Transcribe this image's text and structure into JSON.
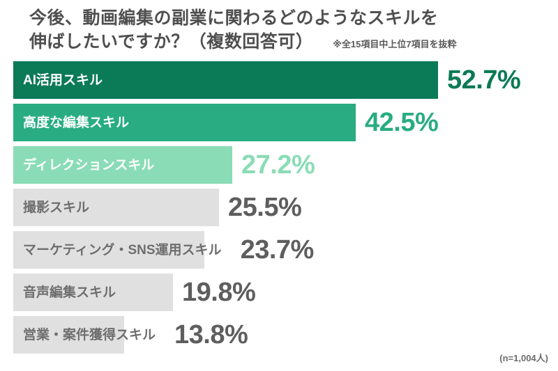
{
  "page": {
    "title_line1": "今後、動画編集の副業に関わるどのようなスキルを",
    "title_line2": "伸ばしたいですか？（複数回答可）",
    "note": "※全15項目中上位7項目を抜粋",
    "sample_note": "(n=1,004人)"
  },
  "colors": {
    "title_text": "#4f4f4f",
    "green_dark": "#0b7a56",
    "green_mid": "#29ac82",
    "green_light": "#8adcb6",
    "gray_bar": "#e0e0e0",
    "gray_label": "#6e6e6e",
    "gray_value": "#5e5e5e",
    "white": "#ffffff"
  },
  "chart_data": {
    "type": "bar",
    "orientation": "horizontal",
    "title": "今後、動画編集の副業に関わるどのようなスキルを伸ばしたいですか？（複数回答可）",
    "note": "※全15項目中上位7項目を抜粋",
    "sample_note": "(n=1,004人)",
    "unit": "%",
    "xlim": [
      0,
      60
    ],
    "grid": false,
    "legend": false,
    "categories": [
      "AI活用スキル",
      "高度な編集スキル",
      "ディレクションスキル",
      "撮影スキル",
      "マーケティング・SNS運用スキル",
      "音声編集スキル",
      "営業・案件獲得スキル"
    ],
    "values": [
      52.7,
      42.5,
      27.2,
      25.5,
      23.7,
      19.8,
      13.8
    ],
    "bars": [
      {
        "label": "AI活用スキル",
        "value": 52.7,
        "value_display": "52.7%",
        "bar_color": "#0b7a56",
        "label_color": "#ffffff",
        "value_color": "#0b7a56"
      },
      {
        "label": "高度な編集スキル",
        "value": 42.5,
        "value_display": "42.5%",
        "bar_color": "#29ac82",
        "label_color": "#ffffff",
        "value_color": "#29ac82"
      },
      {
        "label": "ディレクションスキル",
        "value": 27.2,
        "value_display": "27.2%",
        "bar_color": "#8adcb6",
        "label_color": "#ffffff",
        "value_color": "#8adcb6"
      },
      {
        "label": "撮影スキル",
        "value": 25.5,
        "value_display": "25.5%",
        "bar_color": "#e0e0e0",
        "label_color": "#6e6e6e",
        "value_color": "#5e5e5e"
      },
      {
        "label": "マーケティング・SNS運用スキル",
        "value": 23.7,
        "value_display": "23.7%",
        "bar_color": "#e0e0e0",
        "label_color": "#6e6e6e",
        "value_color": "#5e5e5e"
      },
      {
        "label": "音声編集スキル",
        "value": 19.8,
        "value_display": "19.8%",
        "bar_color": "#e0e0e0",
        "label_color": "#6e6e6e",
        "value_color": "#5e5e5e"
      },
      {
        "label": "営業・案件獲得スキル",
        "value": 13.8,
        "value_display": "13.8%",
        "bar_color": "#e0e0e0",
        "label_color": "#6e6e6e",
        "value_color": "#5e5e5e"
      }
    ]
  }
}
